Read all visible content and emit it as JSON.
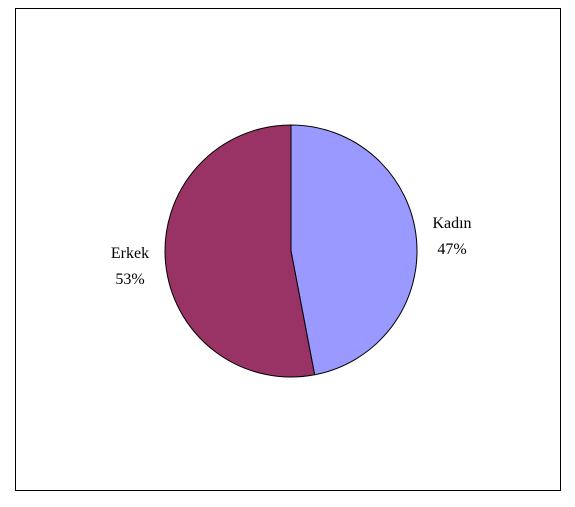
{
  "chart_data": {
    "type": "pie",
    "title": "",
    "slices": [
      {
        "label": "Kadın",
        "value": 47,
        "percent_label": "47%",
        "color": "#9999FF"
      },
      {
        "label": "Erkek",
        "value": 53,
        "percent_label": "53%",
        "color": "#993366"
      }
    ],
    "start_angle_deg": 0,
    "direction": "clockwise",
    "stroke_color": "#000000",
    "legend": "none",
    "data_labels": "category-and-percent"
  }
}
